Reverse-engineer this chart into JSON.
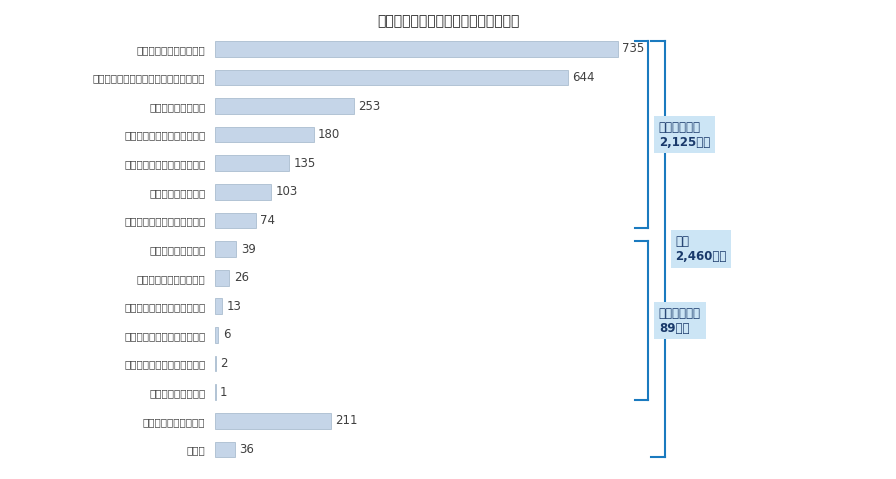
{
  "categories": [
    "国内の画廖　ギャラリー",
    "国内の百貨店（通販、外商扱いも含む）",
    "国内のアートフェア",
    "国内のインターネットサイト",
    "国内の美術品のオークション",
    "その他の国内事業者",
    "国内のミュージアムショップ",
    "国外のアートフェア",
    "国外の画廖　ギャラリー",
    "国外のミュージアムショップ",
    "国外のインターネットサイト",
    "国外の美術品のオークション",
    "その他の国外事業者",
    "作家からの直接の購入",
    "その他"
  ],
  "values": [
    735,
    644,
    253,
    180,
    135,
    103,
    74,
    39,
    26,
    13,
    6,
    2,
    1,
    211,
    36
  ],
  "bar_color": "#c5d5e8",
  "bar_edge_color": "#a0b4c8",
  "value_color": "#404040",
  "label_color": "#404040",
  "background_color": "#ffffff",
  "domestic_group": [
    0,
    6
  ],
  "overseas_group": [
    7,
    12
  ],
  "domestic_label": "国内での購入\n2,125億円",
  "overseas_label": "国外での購入\n89億円",
  "total_label": "全体\n2,460億円",
  "bracket_color": "#1a7abf",
  "annotation_bg_color": "#cce5f5",
  "annotation_text_color": "#1a3a6b",
  "title": "図表２　チャネル別の美術品市場規模"
}
